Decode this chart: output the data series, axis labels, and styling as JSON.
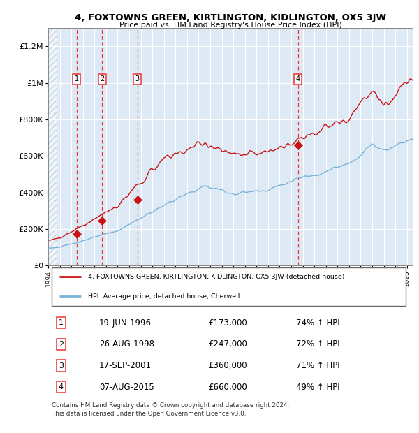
{
  "title": "4, FOXTOWNS GREEN, KIRTLINGTON, KIDLINGTON, OX5 3JW",
  "subtitle": "Price paid vs. HM Land Registry's House Price Index (HPI)",
  "sales": [
    {
      "label": "1",
      "date_str": "19-JUN-1996",
      "date_x": 1996.46,
      "price": 173000
    },
    {
      "label": "2",
      "date_str": "26-AUG-1998",
      "date_x": 1998.65,
      "price": 247000
    },
    {
      "label": "3",
      "date_str": "17-SEP-2001",
      "date_x": 2001.71,
      "price": 360000
    },
    {
      "label": "4",
      "date_str": "07-AUG-2015",
      "date_x": 2015.6,
      "price": 660000
    }
  ],
  "legend_line1": "4, FOXTOWNS GREEN, KIRTLINGTON, KIDLINGTON, OX5 3JW (detached house)",
  "legend_line2": "HPI: Average price, detached house, Cherwell",
  "footer": "Contains HM Land Registry data © Crown copyright and database right 2024.\nThis data is licensed under the Open Government Licence v3.0.",
  "hpi_color": "#7ab3d9",
  "price_color": "#cc1111",
  "dashed_color": "#ee3333",
  "bg_color": "#ddeaf6",
  "ylim": [
    0,
    1300000
  ],
  "xlim": [
    1994.0,
    2025.5
  ],
  "yticks": [
    0,
    200000,
    400000,
    600000,
    800000,
    1000000,
    1200000
  ],
  "ylabel_fmt": [
    "£0",
    "£200K",
    "£400K",
    "£600K",
    "£800K",
    "£1M",
    "£1.2M"
  ],
  "xtick_years": [
    1994,
    1995,
    1996,
    1997,
    1998,
    1999,
    2000,
    2001,
    2002,
    2003,
    2004,
    2005,
    2006,
    2007,
    2008,
    2009,
    2010,
    2011,
    2012,
    2013,
    2014,
    2015,
    2016,
    2017,
    2018,
    2019,
    2020,
    2021,
    2022,
    2023,
    2024,
    2025
  ],
  "sale_table": [
    [
      "1",
      "19-JUN-1996",
      "£173,000",
      "74% ↑ HPI"
    ],
    [
      "2",
      "26-AUG-1998",
      "£247,000",
      "72% ↑ HPI"
    ],
    [
      "3",
      "17-SEP-2001",
      "£360,000",
      "71% ↑ HPI"
    ],
    [
      "4",
      "07-AUG-2015",
      "£660,000",
      "49% ↑ HPI"
    ]
  ]
}
